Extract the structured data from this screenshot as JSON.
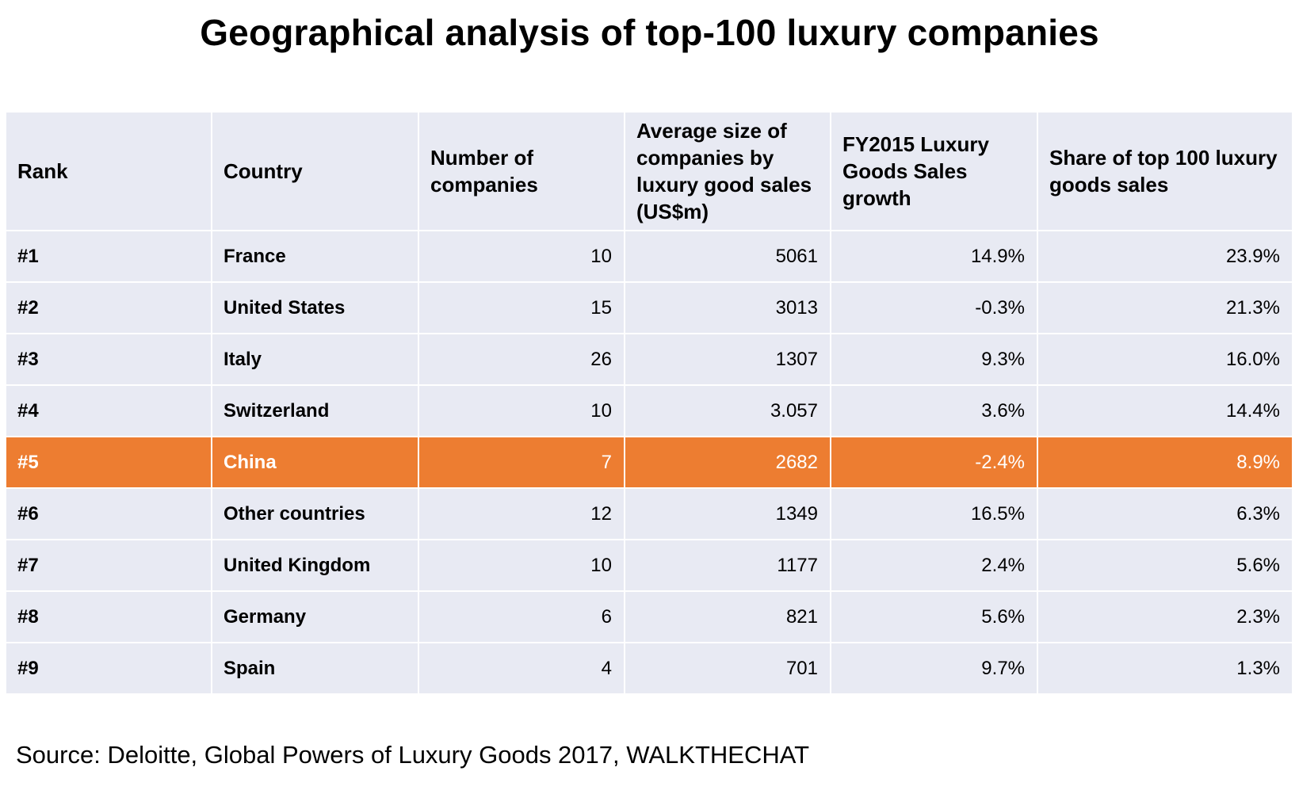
{
  "title": "Geographical analysis of top-100 luxury companies",
  "source": "Source: Deloitte, Global Powers of Luxury Goods 2017, WALKTHECHAT",
  "colors": {
    "cell_background": "#e8eaf3",
    "highlight_background": "#ed7d31",
    "highlight_text": "#ffffff"
  },
  "chart_data": {
    "type": "table",
    "title": "Geographical analysis of top-100 luxury companies",
    "columns": [
      "Rank",
      "Country",
      "Number of companies",
      "Average size of companies by luxury good sales (US$m)",
      "FY2015 Luxury Goods Sales growth",
      "Share of top 100 luxury goods sales"
    ],
    "rows": [
      {
        "rank": "#1",
        "country": "France",
        "companies": "10",
        "avg_size": "5061",
        "growth": "14.9%",
        "share": "23.9%",
        "highlight": false
      },
      {
        "rank": "#2",
        "country": "United States",
        "companies": "15",
        "avg_size": "3013",
        "growth": "-0.3%",
        "share": "21.3%",
        "highlight": false
      },
      {
        "rank": "#3",
        "country": "Italy",
        "companies": "26",
        "avg_size": "1307",
        "growth": "9.3%",
        "share": "16.0%",
        "highlight": false
      },
      {
        "rank": "#4",
        "country": "Switzerland",
        "companies": "10",
        "avg_size": "3.057",
        "growth": "3.6%",
        "share": "14.4%",
        "highlight": false
      },
      {
        "rank": "#5",
        "country": "China",
        "companies": "7",
        "avg_size": "2682",
        "growth": "-2.4%",
        "share": "8.9%",
        "highlight": true
      },
      {
        "rank": "#6",
        "country": "Other countries",
        "companies": "12",
        "avg_size": "1349",
        "growth": "16.5%",
        "share": "6.3%",
        "highlight": false
      },
      {
        "rank": "#7",
        "country": "United Kingdom",
        "companies": "10",
        "avg_size": "1177",
        "growth": "2.4%",
        "share": "5.6%",
        "highlight": false
      },
      {
        "rank": "#8",
        "country": "Germany",
        "companies": "6",
        "avg_size": "821",
        "growth": "5.6%",
        "share": "2.3%",
        "highlight": false
      },
      {
        "rank": "#9",
        "country": "Spain",
        "companies": "4",
        "avg_size": "701",
        "growth": "9.7%",
        "share": "1.3%",
        "highlight": false
      }
    ]
  }
}
